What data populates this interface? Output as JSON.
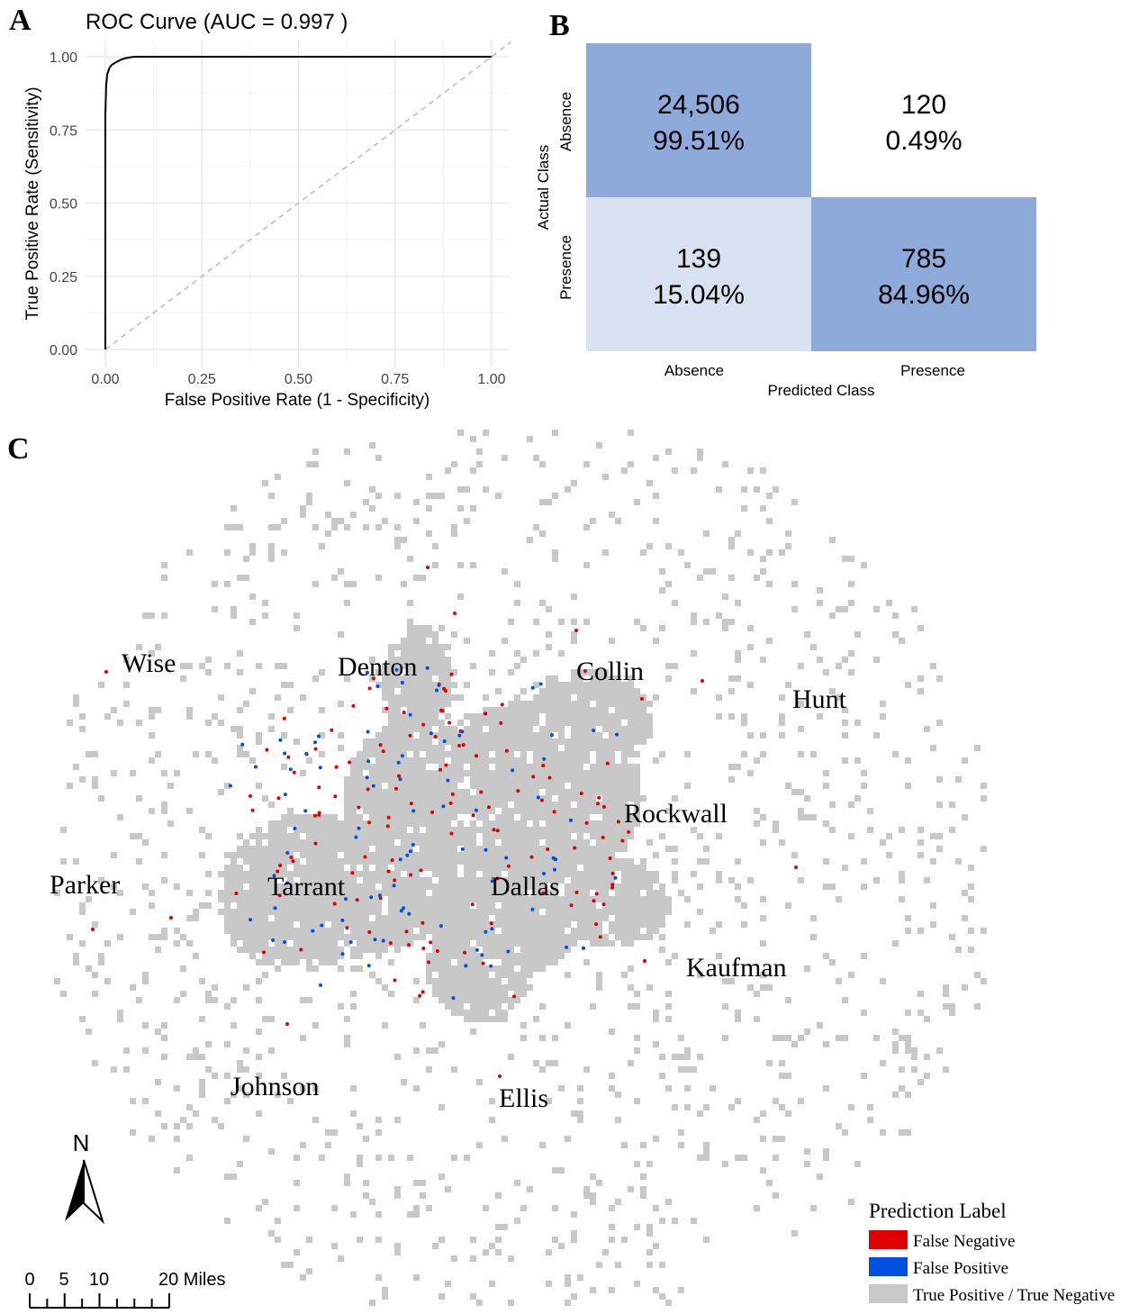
{
  "panels": {
    "a": "A",
    "b": "B",
    "c": "C"
  },
  "chart_data": [
    {
      "type": "line",
      "title": "ROC Curve (AUC =  0.997 )",
      "xlabel": "False Positive Rate (1 - Specificity)",
      "ylabel": "True Positive Rate (Sensitivity)",
      "xlim": [
        0,
        1
      ],
      "ylim": [
        0,
        1
      ],
      "x_ticks": [
        "0.00",
        "0.25",
        "0.50",
        "0.75",
        "1.00"
      ],
      "y_ticks": [
        "0.00",
        "0.25",
        "0.50",
        "0.75",
        "1.00"
      ],
      "grid": true,
      "series": [
        {
          "x": [
            0,
            0.0,
            0.002,
            0.005,
            0.01,
            0.015,
            0.02,
            0.03,
            0.04,
            0.05,
            0.06,
            0.07,
            0.08,
            0.09,
            0.1,
            1.0
          ],
          "y": [
            0,
            0.8,
            0.9,
            0.94,
            0.96,
            0.97,
            0.975,
            0.983,
            0.99,
            0.994,
            0.997,
            0.999,
            1.0,
            1.0,
            1.0,
            1.0
          ],
          "color": "#000000"
        },
        {
          "x": [
            0,
            1.05
          ],
          "y": [
            0,
            1.05
          ],
          "color": "#bbbbbb",
          "dashed": true
        }
      ]
    },
    {
      "type": "heatmap",
      "xlabel": "Predicted Class",
      "ylabel": "Actual Class",
      "x_categories": [
        "Absence",
        "Presence"
      ],
      "y_categories": [
        "Absence",
        "Presence"
      ],
      "cells": [
        {
          "row": 0,
          "col": 0,
          "count": "24,506",
          "pct": "99.51%",
          "color": "#8eaadb"
        },
        {
          "row": 0,
          "col": 1,
          "count": "120",
          "pct": "0.49%",
          "color": "#ffffff"
        },
        {
          "row": 1,
          "col": 0,
          "count": "139",
          "pct": "15.04%",
          "color": "#d9e2f3"
        },
        {
          "row": 1,
          "col": 1,
          "count": "785",
          "pct": "84.96%",
          "color": "#8eaadb"
        }
      ]
    }
  ],
  "map": {
    "counties": [
      "Wise",
      "Denton",
      "Collin",
      "Hunt",
      "Rockwall",
      "Parker",
      "Tarrant",
      "Dallas",
      "Kaufman",
      "Johnson",
      "Ellis"
    ],
    "north_label": "N",
    "scale_labels": [
      "0",
      "5",
      "10",
      "20 Miles"
    ],
    "legend": {
      "title": "Prediction Label",
      "items": [
        {
          "label": "False Negative",
          "color": "#e00000"
        },
        {
          "label": "False Positive",
          "color": "#0050e0"
        },
        {
          "label": "True Positive / True Negative",
          "color": "#c8c8c8"
        }
      ]
    }
  }
}
